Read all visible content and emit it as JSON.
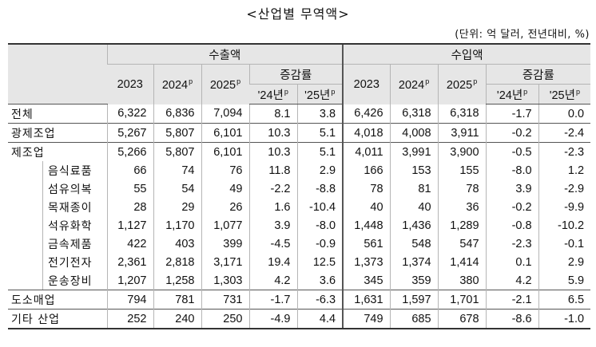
{
  "title": "<산업별 무역액>",
  "unit": "(단위: 억 달러, 전년대비, %)",
  "header": {
    "export": "수출액",
    "import": "수입액",
    "growth": "증감률",
    "y2023": "2023",
    "y2024": "2024",
    "y2025": "2025",
    "g24": "'24년",
    "g25": "'25년",
    "p": "p"
  },
  "rows": [
    {
      "label": "전체",
      "ex23": "6,322",
      "ex24": "6,836",
      "ex25": "7,094",
      "exg24": "8.1",
      "exg25": "3.8",
      "im23": "6,426",
      "im24": "6,318",
      "im25": "6,318",
      "img24": "-1.7",
      "img25": "0.0"
    },
    {
      "label": "광제조업",
      "ex23": "5,267",
      "ex24": "5,807",
      "ex25": "6,101",
      "exg24": "10.3",
      "exg25": "5.1",
      "im23": "4,018",
      "im24": "4,008",
      "im25": "3,911",
      "img24": "-0.2",
      "img25": "-2.4"
    },
    {
      "label": "제조업",
      "ex23": "5,266",
      "ex24": "5,807",
      "ex25": "6,101",
      "exg24": "10.3",
      "exg25": "5.1",
      "im23": "4,011",
      "im24": "3,991",
      "im25": "3,900",
      "img24": "-0.5",
      "img25": "-2.3"
    },
    {
      "label": "음식료품",
      "ex23": "66",
      "ex24": "74",
      "ex25": "76",
      "exg24": "11.8",
      "exg25": "2.9",
      "im23": "166",
      "im24": "153",
      "im25": "155",
      "img24": "-8.0",
      "img25": "1.2"
    },
    {
      "label": "섬유의복",
      "ex23": "55",
      "ex24": "54",
      "ex25": "49",
      "exg24": "-2.2",
      "exg25": "-8.8",
      "im23": "78",
      "im24": "81",
      "im25": "78",
      "img24": "3.9",
      "img25": "-2.9"
    },
    {
      "label": "목재종이",
      "ex23": "28",
      "ex24": "29",
      "ex25": "26",
      "exg24": "1.6",
      "exg25": "-10.4",
      "im23": "40",
      "im24": "40",
      "im25": "36",
      "img24": "-0.2",
      "img25": "-9.9"
    },
    {
      "label": "석유화학",
      "ex23": "1,127",
      "ex24": "1,170",
      "ex25": "1,077",
      "exg24": "3.9",
      "exg25": "-8.0",
      "im23": "1,448",
      "im24": "1,436",
      "im25": "1,289",
      "img24": "-0.8",
      "img25": "-10.2"
    },
    {
      "label": "금속제품",
      "ex23": "422",
      "ex24": "403",
      "ex25": "399",
      "exg24": "-4.5",
      "exg25": "-0.9",
      "im23": "561",
      "im24": "548",
      "im25": "547",
      "img24": "-2.3",
      "img25": "-0.1"
    },
    {
      "label": "전기전자",
      "ex23": "2,361",
      "ex24": "2,818",
      "ex25": "3,171",
      "exg24": "19.4",
      "exg25": "12.5",
      "im23": "1,373",
      "im24": "1,374",
      "im25": "1,414",
      "img24": "0.1",
      "img25": "2.9"
    },
    {
      "label": "운송장비",
      "ex23": "1,207",
      "ex24": "1,258",
      "ex25": "1,303",
      "exg24": "4.2",
      "exg25": "3.6",
      "im23": "345",
      "im24": "359",
      "im25": "380",
      "img24": "4.2",
      "img25": "5.9"
    },
    {
      "label": "도소매업",
      "ex23": "794",
      "ex24": "781",
      "ex25": "731",
      "exg24": "-1.7",
      "exg25": "-6.3",
      "im23": "1,631",
      "im24": "1,597",
      "im25": "1,701",
      "img24": "-2.1",
      "img25": "6.5"
    },
    {
      "label": "기타 산업",
      "ex23": "252",
      "ex24": "240",
      "ex25": "250",
      "exg24": "-4.9",
      "exg25": "4.4",
      "im23": "749",
      "im24": "685",
      "im25": "678",
      "img24": "-8.6",
      "img25": "-1.0"
    }
  ]
}
